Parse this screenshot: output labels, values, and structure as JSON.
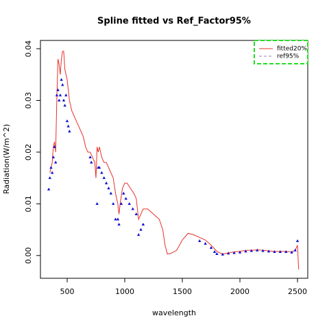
{
  "chart_data": {
    "type": "line+scatter",
    "title": "Spline fitted vs Ref_Factor95%",
    "xlabel": "wavelength",
    "ylabel": "Radiation(W/m^2)",
    "xlim": [
      268,
      2589
    ],
    "ylim": [
      -0.0044,
      0.0416
    ],
    "xticks": [
      500,
      1000,
      1500,
      2000,
      2500
    ],
    "yticks": [
      {
        "value": 0,
        "label": "0.00"
      },
      {
        "value": 0.01,
        "label": "0.01"
      },
      {
        "value": 0.02,
        "label": "0.02"
      },
      {
        "value": 0.03,
        "label": "0.03"
      },
      {
        "value": 0.04,
        "label": "0.04"
      }
    ],
    "legend": "topright",
    "series": [
      {
        "name": "fitted20%",
        "kind": "line",
        "color": "#e8302a",
        "x": [
          350,
          370,
          380,
          390,
          400,
          410,
          420,
          430,
          440,
          450,
          460,
          470,
          480,
          490,
          500,
          520,
          540,
          560,
          580,
          600,
          620,
          640,
          660,
          680,
          700,
          720,
          740,
          750,
          760,
          770,
          780,
          800,
          820,
          840,
          860,
          880,
          900,
          920,
          940,
          950,
          960,
          980,
          1000,
          1020,
          1050,
          1080,
          1100,
          1120,
          1140,
          1160,
          1200,
          1250,
          1300,
          1330,
          1350,
          1370,
          1400,
          1450,
          1500,
          1550,
          1600,
          1650,
          1700,
          1750,
          1800,
          1850,
          1900,
          1950,
          2000,
          2050,
          2100,
          2150,
          2200,
          2250,
          2300,
          2350,
          2400,
          2450,
          2480,
          2500,
          2510
        ],
        "values": [
          0.016,
          0.018,
          0.021,
          0.022,
          0.02,
          0.03,
          0.038,
          0.037,
          0.035,
          0.038,
          0.0395,
          0.0395,
          0.036,
          0.035,
          0.034,
          0.03,
          0.028,
          0.027,
          0.026,
          0.025,
          0.024,
          0.023,
          0.021,
          0.02,
          0.02,
          0.019,
          0.018,
          0.015,
          0.021,
          0.02,
          0.021,
          0.019,
          0.018,
          0.018,
          0.017,
          0.016,
          0.015,
          0.012,
          0.01,
          0.008,
          0.01,
          0.013,
          0.014,
          0.014,
          0.013,
          0.012,
          0.011,
          0.007,
          0.008,
          0.009,
          0.009,
          0.008,
          0.007,
          0.005,
          0.002,
          0.0003,
          0.0004,
          0.001,
          0.003,
          0.0043,
          0.004,
          0.0035,
          0.003,
          0.002,
          0.0008,
          0.0003,
          0.0005,
          0.0007,
          0.0008,
          0.001,
          0.001,
          0.0011,
          0.001,
          0.0009,
          0.0008,
          0.0008,
          0.0008,
          0.0007,
          0.001,
          0.002,
          -0.0027
        ]
      },
      {
        "name": "ref95%",
        "kind": "scatter",
        "color": "#1010d0",
        "x": [
          340,
          350,
          360,
          370,
          380,
          390,
          400,
          410,
          420,
          430,
          440,
          450,
          460,
          470,
          480,
          490,
          500,
          510,
          520,
          700,
          710,
          760,
          770,
          780,
          800,
          820,
          840,
          860,
          880,
          900,
          920,
          940,
          950,
          970,
          990,
          1010,
          1040,
          1070,
          1100,
          1120,
          1140,
          1160,
          1650,
          1700,
          1750,
          1780,
          1800,
          1850,
          1900,
          1950,
          2000,
          2050,
          2100,
          2150,
          2200,
          2250,
          2300,
          2350,
          2400,
          2450,
          2480,
          2500
        ],
        "values": [
          0.0128,
          0.015,
          0.017,
          0.016,
          0.019,
          0.021,
          0.018,
          0.031,
          0.032,
          0.03,
          0.031,
          0.034,
          0.033,
          0.03,
          0.029,
          0.031,
          0.026,
          0.025,
          0.024,
          0.019,
          0.018,
          0.01,
          0.017,
          0.017,
          0.016,
          0.015,
          0.014,
          0.013,
          0.012,
          0.01,
          0.007,
          0.007,
          0.006,
          0.01,
          0.012,
          0.011,
          0.01,
          0.009,
          0.008,
          0.004,
          0.005,
          0.006,
          0.0028,
          0.0023,
          0.0015,
          0.0007,
          0.0003,
          0.0002,
          0.0004,
          0.0005,
          0.0006,
          0.0008,
          0.0009,
          0.001,
          0.0009,
          0.0008,
          0.0007,
          0.0007,
          0.0007,
          0.0006,
          0.001,
          0.0028
        ]
      }
    ]
  }
}
